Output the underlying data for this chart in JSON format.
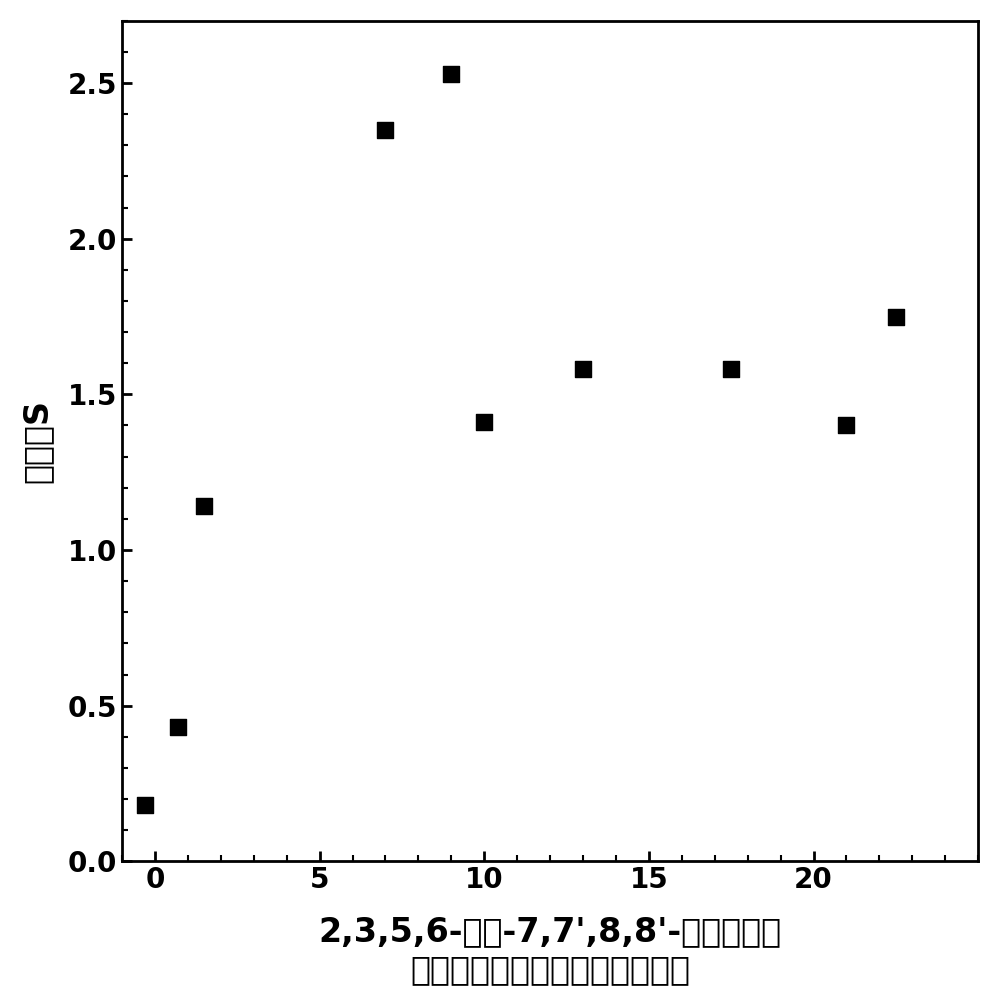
{
  "x_values": [
    -0.3,
    0.7,
    1.5,
    7.0,
    9.0,
    10.0,
    13.0,
    17.5,
    21.0,
    22.5
  ],
  "y_values": [
    0.18,
    0.43,
    1.14,
    2.35,
    2.53,
    1.41,
    1.58,
    1.58,
    1.4,
    1.75
  ],
  "xlabel_line1": "2,3,5,6-四氟-7,7',8,8'-四氰二甲基",
  "xlabel_line2": "对苯醜与单壁碳纳米管的质量比",
  "ylabel": "灵敏度S",
  "xlim": [
    -1,
    25
  ],
  "ylim": [
    0.0,
    2.7
  ],
  "xticks": [
    0,
    5,
    10,
    15,
    20
  ],
  "yticks": [
    0.0,
    0.5,
    1.0,
    1.5,
    2.0,
    2.5
  ],
  "marker_color": "#000000",
  "marker_size": 120,
  "background_color": "white",
  "ylabel_fontsize": 24,
  "xlabel_fontsize": 24,
  "tick_fontsize": 20,
  "spine_linewidth": 2.0
}
